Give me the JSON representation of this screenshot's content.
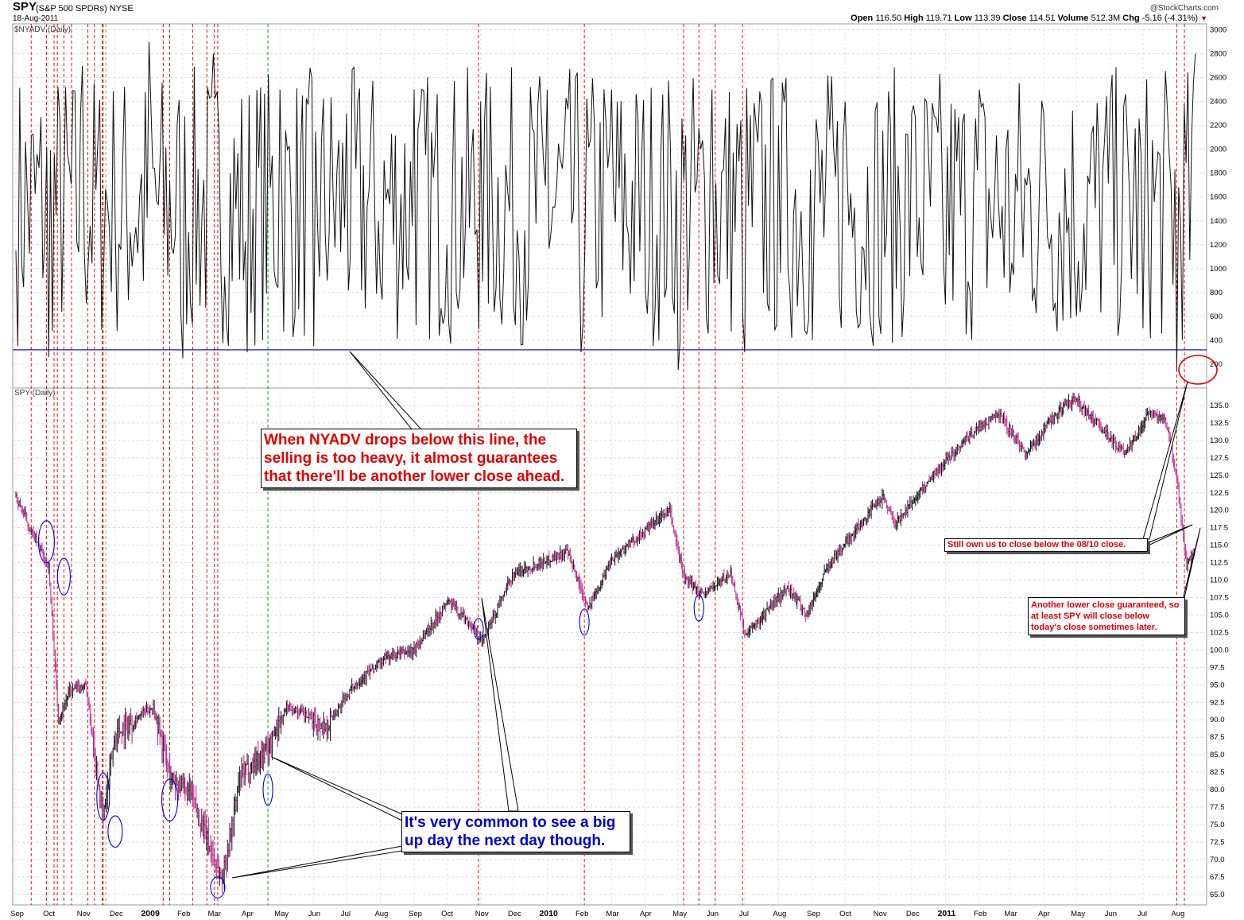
{
  "header": {
    "symbol": "SPY",
    "name": "(S&P 500 SPDRs)  NYSE",
    "date": "18-Aug-2011",
    "credit": "@StockCharts.com",
    "quote": {
      "open_label": "Open",
      "open": "116.50",
      "high_label": "High",
      "high": "119.71",
      "low_label": "Low",
      "low": "113.39",
      "close_label": "Close",
      "close": "114.51",
      "volume_label": "Volume",
      "volume": "512.3M",
      "chg_label": "Chg",
      "chg": "-5.16 (-4.31%)",
      "chg_marker": "▼"
    }
  },
  "annotations": {
    "nyadv_note": "When NYADV drops below this line, the selling is too heavy, it almost guarantees that there'll be another lower close ahead.",
    "bigup_note": "It's very common to see a big up day the next day though.",
    "still_note": "Still own us to close below the 08/10 close.",
    "lower_note": "Another lower close guaranteed, so at least SPY will close below today's close sometimes later."
  },
  "chart_data": [
    {
      "type": "line",
      "title": "$NYADV (Daily)",
      "ylim": [
        0,
        3050
      ],
      "yticks": [
        200,
        400,
        600,
        800,
        1000,
        1200,
        1400,
        1600,
        1800,
        2000,
        2200,
        2400,
        2600,
        2800,
        3000
      ],
      "threshold": 320,
      "grid": true,
      "series": [
        {
          "x": [
            "2008-09-01",
            "2008-10-01",
            "2008-11-01",
            "2008-12-01",
            "2009-01-01",
            "2009-02-01",
            "2009-03-01",
            "2009-04-01",
            "2009-05-01",
            "2009-06-01",
            "2009-07-01",
            "2009-08-01",
            "2009-09-01",
            "2009-10-01",
            "2009-11-01",
            "2009-12-01",
            "2010-01-01",
            "2010-02-01",
            "2010-03-01",
            "2010-04-01",
            "2010-05-01",
            "2010-06-01",
            "2010-07-01",
            "2010-08-01",
            "2010-09-01",
            "2010-10-01",
            "2010-11-01",
            "2010-12-01",
            "2011-01-01",
            "2011-02-01",
            "2011-03-01",
            "2011-04-01",
            "2011-05-01",
            "2011-06-01",
            "2011-07-01",
            "2011-08-01",
            "2011-08-18"
          ],
          "values": [
            1150,
            260,
            2700,
            1400,
            2900,
            250,
            2800,
            300,
            2500,
            350,
            2300,
            900,
            2500,
            1200,
            2400,
            700,
            2500,
            300,
            2500,
            800,
            150,
            2500,
            300,
            2200,
            400,
            2400,
            600,
            2300,
            700,
            2500,
            800,
            2300,
            600,
            2400,
            500,
            120,
            2800
          ]
        }
      ]
    },
    {
      "type": "bar",
      "title": "SPY (Daily)",
      "ylim": [
        63.5,
        137.5
      ],
      "yticks": [
        65.0,
        67.5,
        70.0,
        72.5,
        75.0,
        77.5,
        80.0,
        82.5,
        85.0,
        87.5,
        90.0,
        92.5,
        95.0,
        97.5,
        100.0,
        102.5,
        105.0,
        107.5,
        110.0,
        112.5,
        115.0,
        117.5,
        120.0,
        122.5,
        125.0,
        127.5,
        130.0,
        132.5,
        135.0
      ],
      "grid": true,
      "xticks": [
        "Sep",
        "Oct",
        "Nov",
        "Dec",
        "2009",
        "Feb",
        "Mar",
        "Apr",
        "May",
        "Jun",
        "Jul",
        "Aug",
        "Sep",
        "Oct",
        "Nov",
        "Dec",
        "2010",
        "Feb",
        "Mar",
        "Apr",
        "May",
        "Jun",
        "Jul",
        "Aug",
        "Sep",
        "Oct",
        "Nov",
        "Dec",
        "2011",
        "Feb",
        "Mar",
        "Apr",
        "May",
        "Jun",
        "Jul",
        "Aug"
      ],
      "series": [
        {
          "x": [
            "2008-09-01",
            "2008-09-15",
            "2008-10-01",
            "2008-10-10",
            "2008-10-20",
            "2008-11-04",
            "2008-11-20",
            "2008-12-01",
            "2009-01-05",
            "2009-01-20",
            "2009-02-09",
            "2009-03-09",
            "2009-03-26",
            "2009-04-20",
            "2009-05-08",
            "2009-06-12",
            "2009-07-08",
            "2009-08-07",
            "2009-09-01",
            "2009-10-02",
            "2009-10-21",
            "2009-11-02",
            "2009-12-01",
            "2010-01-19",
            "2010-02-08",
            "2010-03-01",
            "2010-04-23",
            "2010-05-07",
            "2010-05-25",
            "2010-06-18",
            "2010-07-02",
            "2010-08-09",
            "2010-08-27",
            "2010-09-15",
            "2010-10-15",
            "2010-11-05",
            "2010-11-16",
            "2010-12-15",
            "2011-01-18",
            "2011-02-18",
            "2011-03-16",
            "2011-04-08",
            "2011-04-29",
            "2011-06-15",
            "2011-07-07",
            "2011-07-22",
            "2011-08-02",
            "2011-08-10",
            "2011-08-18"
          ],
          "values": [
            122,
            117,
            112,
            90,
            94,
            95,
            76,
            88,
            92,
            82,
            79,
            67,
            82,
            86,
            92,
            89,
            95,
            99,
            100,
            107,
            104,
            101,
            111,
            114,
            106,
            113,
            120,
            110,
            108,
            111,
            102,
            109,
            105,
            112,
            118,
            122,
            118,
            124,
            130,
            134,
            128,
            133,
            136,
            128,
            134,
            133,
            123,
            112,
            114.5
          ]
        }
      ]
    }
  ]
}
